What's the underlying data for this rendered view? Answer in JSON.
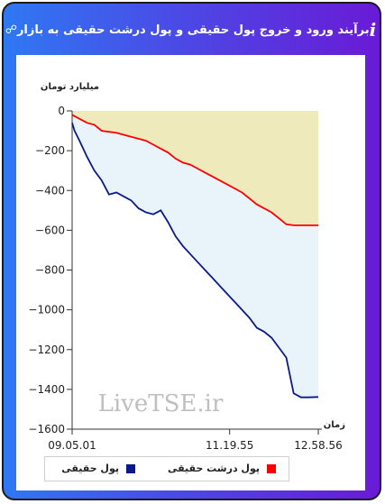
{
  "header": {
    "title": "برآیند ورود و خروج پول حقیقی و پول درشت حقیقی به بازار",
    "info_icon": "i",
    "link_icon_name": "link-icon"
  },
  "colors": {
    "real_money": "#0a1a8c",
    "big_real_money": "#ff0000",
    "area_real": "#e9f3fa",
    "area_big": "#efeabb"
  },
  "chart_data": {
    "type": "area",
    "ylabel": "میلیارد تومان",
    "xlabel": "زمان",
    "ylim": [
      -1600,
      0
    ],
    "yticks": [
      "0",
      "-200",
      "-400",
      "-600",
      "-800",
      "-1000",
      "-1200",
      "-1400",
      "-1600"
    ],
    "xticks": [
      "09.05.01",
      "11.19.55",
      "12.58.56"
    ],
    "watermark": "LiveTSE.ir",
    "legend_position": "bottom",
    "series": [
      {
        "name": "پول حقیقی",
        "color": "#0a1a8c",
        "x": [
          0,
          1,
          3,
          6,
          9,
          12,
          15,
          18,
          21,
          24,
          27,
          30,
          33,
          36,
          39,
          42,
          45,
          48,
          51,
          54,
          57,
          60,
          63,
          66,
          69,
          72,
          75,
          78,
          81,
          84,
          87,
          90,
          93,
          96,
          100
        ],
        "values": [
          -60,
          -100,
          -150,
          -230,
          -300,
          -350,
          -420,
          -410,
          -430,
          -450,
          -490,
          -510,
          -520,
          -500,
          -560,
          -630,
          -680,
          -720,
          -760,
          -800,
          -840,
          -880,
          -920,
          -960,
          -1000,
          -1040,
          -1090,
          -1110,
          -1140,
          -1190,
          -1240,
          -1420,
          -1440,
          -1440,
          -1438
        ]
      },
      {
        "name": "پول درشت حقیقی",
        "color": "#ff0000",
        "x": [
          0,
          3,
          6,
          9,
          12,
          15,
          18,
          21,
          24,
          27,
          30,
          33,
          36,
          39,
          42,
          45,
          48,
          51,
          54,
          57,
          60,
          63,
          66,
          69,
          72,
          75,
          78,
          81,
          84,
          87,
          90,
          93,
          96,
          100
        ],
        "values": [
          -20,
          -40,
          -60,
          -70,
          -100,
          -105,
          -110,
          -120,
          -130,
          -140,
          -150,
          -170,
          -190,
          -210,
          -240,
          -260,
          -270,
          -290,
          -310,
          -330,
          -350,
          -370,
          -390,
          -410,
          -440,
          -470,
          -490,
          -510,
          -540,
          -570,
          -575,
          -575,
          -575,
          -575
        ]
      }
    ]
  }
}
